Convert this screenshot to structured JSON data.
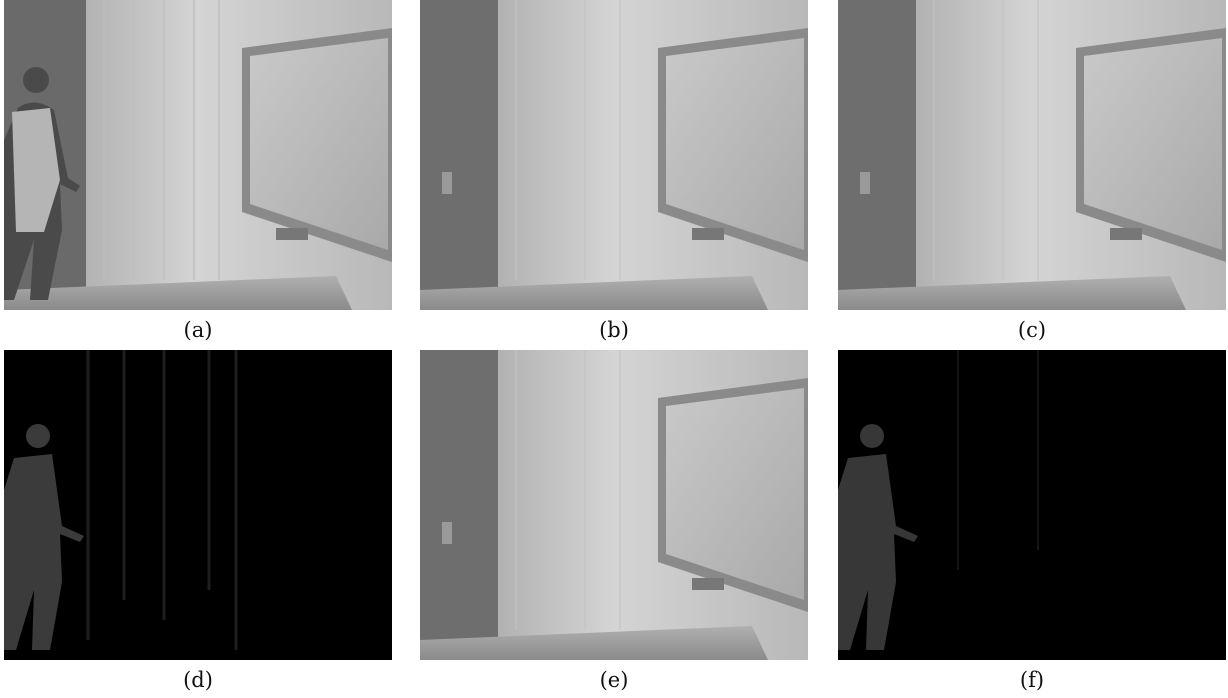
{
  "panels": [
    {
      "id": "a",
      "caption": "(a)",
      "content": "scene-with-person"
    },
    {
      "id": "b",
      "caption": "(b)",
      "content": "background-scene"
    },
    {
      "id": "c",
      "caption": "(c)",
      "content": "background-scene"
    },
    {
      "id": "d",
      "caption": "(d)",
      "content": "foreground-residual"
    },
    {
      "id": "e",
      "caption": "(e)",
      "content": "background-scene"
    },
    {
      "id": "f",
      "caption": "(f)",
      "content": "foreground-residual"
    }
  ]
}
